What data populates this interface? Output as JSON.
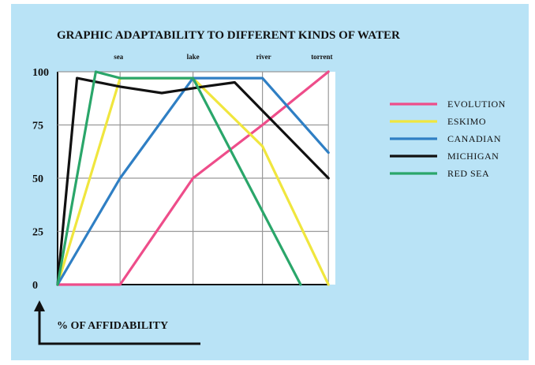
{
  "chart_data": {
    "type": "line",
    "title": "GRAPHIC ADAPTABILITY TO DIFFERENT KINDS OF WATER",
    "ylabel": "% OF AFFIDABILITY",
    "xlabel": "",
    "categories": [
      "sea",
      "lake",
      "river",
      "torrent"
    ],
    "yticks": [
      "100",
      "75",
      "50",
      "25",
      "0"
    ],
    "ylim": [
      0,
      100
    ],
    "xlim": [
      0,
      4
    ],
    "grid": true,
    "legend_position": "right",
    "series": [
      {
        "name": "EVOLUTION",
        "color": "#ee4d8a",
        "points": [
          [
            0,
            0
          ],
          [
            0.9,
            0
          ],
          [
            1.95,
            50
          ],
          [
            2.95,
            75
          ],
          [
            3.9,
            100
          ]
        ]
      },
      {
        "name": "ESKIMO",
        "color": "#f0e63e",
        "points": [
          [
            0,
            0
          ],
          [
            0.9,
            97
          ],
          [
            1.95,
            97
          ],
          [
            2.95,
            65
          ],
          [
            3.9,
            0
          ]
        ]
      },
      {
        "name": "CANADIAN",
        "color": "#2f7fc4",
        "points": [
          [
            0,
            0
          ],
          [
            0.9,
            50
          ],
          [
            1.95,
            97
          ],
          [
            2.95,
            97
          ],
          [
            3.9,
            62
          ]
        ]
      },
      {
        "name": "MICHIGAN",
        "color": "#111111",
        "points": [
          [
            0,
            0
          ],
          [
            0.28,
            97
          ],
          [
            0.9,
            93
          ],
          [
            1.5,
            90
          ],
          [
            2.1,
            93
          ],
          [
            2.55,
            95
          ],
          [
            3.9,
            50
          ]
        ]
      },
      {
        "name": "RED SEA",
        "color": "#2aa66a",
        "points": [
          [
            0,
            0
          ],
          [
            0.55,
            100
          ],
          [
            0.9,
            97
          ],
          [
            1.95,
            97
          ],
          [
            3.5,
            0
          ]
        ]
      }
    ]
  }
}
